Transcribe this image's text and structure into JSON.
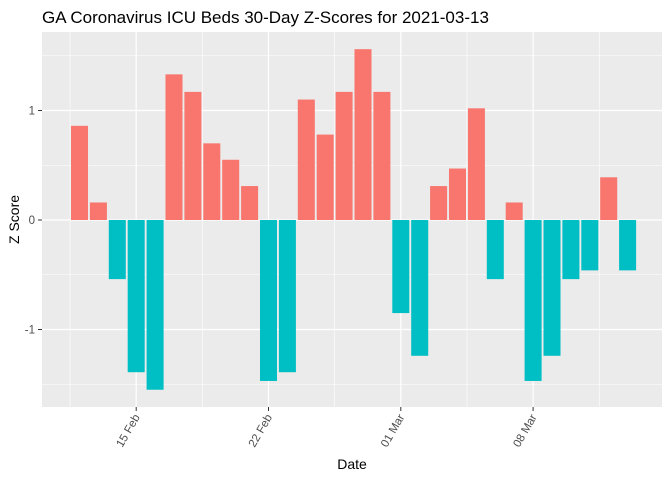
{
  "chart_data": {
    "type": "bar",
    "title": "GA Coronavirus ICU Beds 30-Day Z-Scores for 2021-03-13",
    "xlabel": "Date",
    "ylabel": "Z Score",
    "x_ticks": [
      "15 Feb",
      "22 Feb",
      "01 Mar",
      "08 Mar"
    ],
    "y_ticks": [
      "-1",
      "0",
      "1"
    ],
    "ylim": [
      -1.65,
      1.65
    ],
    "grid": true,
    "legend": "none",
    "colors": {
      "positive": "#F8766D",
      "negative": "#00BFC4",
      "panel": "#EBEBEB",
      "grid": "#FFFFFF"
    },
    "categories": [
      "2021-02-12",
      "2021-02-13",
      "2021-02-14",
      "2021-02-15",
      "2021-02-16",
      "2021-02-17",
      "2021-02-18",
      "2021-02-19",
      "2021-02-20",
      "2021-02-21",
      "2021-02-22",
      "2021-02-23",
      "2021-02-24",
      "2021-02-25",
      "2021-02-26",
      "2021-02-27",
      "2021-02-28",
      "2021-03-01",
      "2021-03-02",
      "2021-03-03",
      "2021-03-04",
      "2021-03-05",
      "2021-03-06",
      "2021-03-07",
      "2021-03-08",
      "2021-03-09",
      "2021-03-10",
      "2021-03-11",
      "2021-03-12",
      "2021-03-13"
    ],
    "values": [
      0.86,
      0.16,
      -0.54,
      -1.39,
      -1.55,
      1.33,
      1.17,
      0.7,
      0.55,
      0.31,
      -1.47,
      -1.39,
      1.1,
      0.78,
      1.17,
      1.56,
      1.17,
      -0.85,
      -1.24,
      0.31,
      0.47,
      1.02,
      -0.54,
      0.16,
      -1.47,
      -1.24,
      -0.54,
      -0.46,
      0.39,
      -0.46
    ]
  }
}
